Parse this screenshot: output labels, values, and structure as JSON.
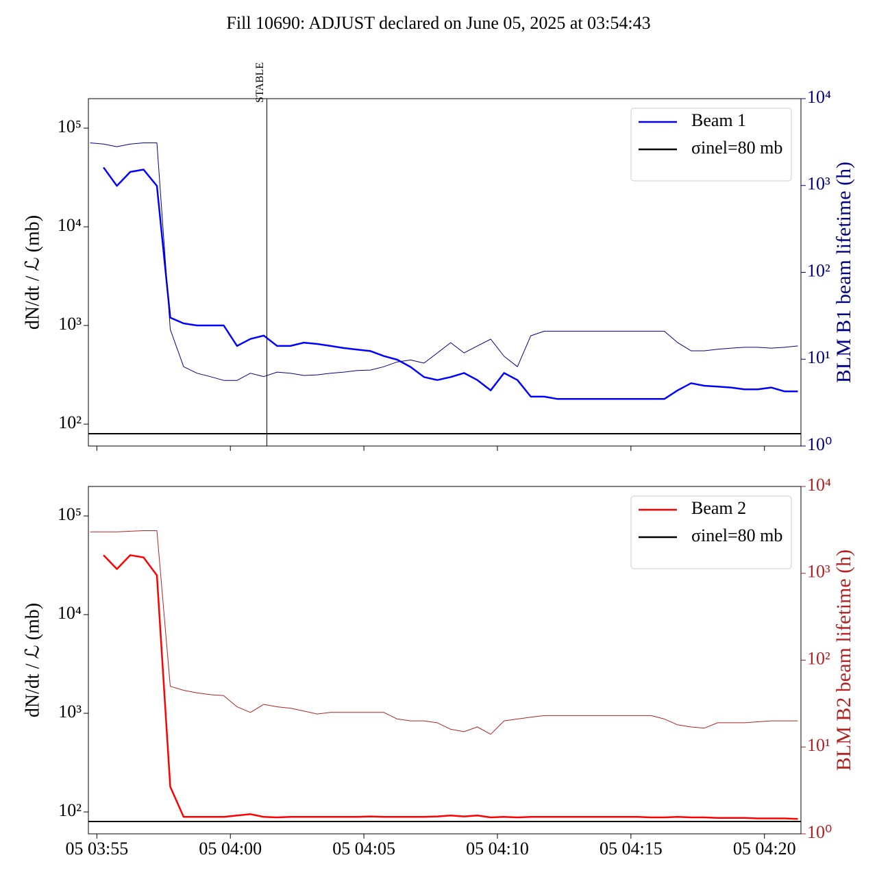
{
  "chart_data": [
    {
      "type": "line",
      "title": "Fill 10690: ADJUST declared on June 05, 2025 at 03:54:43",
      "x": [
        "05 03:54:45",
        "05 03:55:15",
        "05 03:55:45",
        "05 03:56:15",
        "05 03:56:45",
        "05 03:57:15",
        "05 03:57:45",
        "05 03:58:15",
        "05 03:58:45",
        "05 03:59:15",
        "05 03:59:45",
        "05 04:00:15",
        "05 04:00:45",
        "05 04:01:15",
        "05 04:01:45",
        "05 04:02:15",
        "05 04:02:45",
        "05 04:03:15",
        "05 04:03:45",
        "05 04:04:15",
        "05 04:04:45",
        "05 04:05:15",
        "05 04:05:45",
        "05 04:06:15",
        "05 04:06:45",
        "05 04:07:15",
        "05 04:07:45",
        "05 04:08:15",
        "05 04:08:45",
        "05 04:09:15",
        "05 04:09:45",
        "05 04:10:15",
        "05 04:10:45",
        "05 04:11:15",
        "05 04:11:45",
        "05 04:12:15",
        "05 04:12:45",
        "05 04:13:15",
        "05 04:13:45",
        "05 04:14:15",
        "05 04:14:45",
        "05 04:15:15",
        "05 04:15:45",
        "05 04:16:15",
        "05 04:16:45",
        "05 04:17:15",
        "05 04:17:45",
        "05 04:18:15",
        "05 04:18:45",
        "05 04:19:15",
        "05 04:19:45",
        "05 04:20:15",
        "05 04:20:45",
        "05 04:21:15"
      ],
      "series": [
        {
          "name": "Beam 1",
          "color": "#0000ff",
          "values": [
            null,
            40000,
            26000,
            36000,
            38000,
            26000,
            1200,
            1050,
            1000,
            1000,
            1000,
            620,
            730,
            790,
            620,
            620,
            670,
            650,
            620,
            590,
            570,
            550,
            490,
            450,
            380,
            300,
            280,
            300,
            330,
            280,
            220,
            330,
            280,
            190,
            190,
            180,
            180,
            180,
            180,
            180,
            180,
            180,
            180,
            180,
            220,
            260,
            245,
            240,
            235,
            225,
            225,
            235,
            215,
            215
          ]
        },
        {
          "color": "#00008b",
          "axis": "y2",
          "values": [
            3100,
            3000,
            2800,
            3000,
            3100,
            3100,
            22,
            8.2,
            6.9,
            6.3,
            5.7,
            5.7,
            6.9,
            6.3,
            7.1,
            6.9,
            6.5,
            6.6,
            6.9,
            7.1,
            7.4,
            7.5,
            8.2,
            9.3,
            9.8,
            9.0,
            11.8,
            15.5,
            11.8,
            14.2,
            17,
            10.8,
            8.2,
            18.6,
            21,
            21,
            21,
            21,
            21,
            21,
            21,
            21,
            21,
            21,
            15.5,
            12.5,
            12.5,
            13,
            13.4,
            13.7,
            13.7,
            13.4,
            13.7,
            14.2
          ]
        }
      ],
      "hline": {
        "name": "σinel=80 mb",
        "value": 80,
        "color": "#000000"
      },
      "annotation": {
        "text": "STABLE",
        "x": "05 04:01:22"
      },
      "ylabel": "dN/dt / ℒ (mb)",
      "y2label": "BLM B1 beam lifetime (h)",
      "y2color": "#000080",
      "xlim": [
        "05 03:54:41",
        "05 04:21:22"
      ],
      "yscale": "log",
      "ylim": [
        60,
        199000
      ],
      "yticks": [
        {
          "value": 100,
          "label": "10²"
        },
        {
          "value": 1000,
          "label": "10³"
        },
        {
          "value": 10000,
          "label": "10⁴"
        },
        {
          "value": 100000,
          "label": "10⁵"
        }
      ],
      "y2scale": "log",
      "y2lim": [
        1,
        10000
      ],
      "y2ticks": [
        {
          "value": 1,
          "label": "10⁰"
        },
        {
          "value": 10,
          "label": "10¹"
        },
        {
          "value": 100,
          "label": "10²"
        },
        {
          "value": 1000,
          "label": "10³"
        },
        {
          "value": 10000,
          "label": "10⁴"
        }
      ],
      "legend": "upper right"
    },
    {
      "type": "line",
      "x": [
        "05 03:54:45",
        "05 03:55:15",
        "05 03:55:45",
        "05 03:56:15",
        "05 03:56:45",
        "05 03:57:15",
        "05 03:57:45",
        "05 03:58:15",
        "05 03:58:45",
        "05 03:59:15",
        "05 03:59:45",
        "05 04:00:15",
        "05 04:00:45",
        "05 04:01:15",
        "05 04:01:45",
        "05 04:02:15",
        "05 04:02:45",
        "05 04:03:15",
        "05 04:03:45",
        "05 04:04:15",
        "05 04:04:45",
        "05 04:05:15",
        "05 04:05:45",
        "05 04:06:15",
        "05 04:06:45",
        "05 04:07:15",
        "05 04:07:45",
        "05 04:08:15",
        "05 04:08:45",
        "05 04:09:15",
        "05 04:09:45",
        "05 04:10:15",
        "05 04:10:45",
        "05 04:11:15",
        "05 04:11:45",
        "05 04:12:15",
        "05 04:12:45",
        "05 04:13:15",
        "05 04:13:45",
        "05 04:14:15",
        "05 04:14:45",
        "05 04:15:15",
        "05 04:15:45",
        "05 04:16:15",
        "05 04:16:45",
        "05 04:17:15",
        "05 04:17:45",
        "05 04:18:15",
        "05 04:18:45",
        "05 04:19:15",
        "05 04:19:45",
        "05 04:20:15",
        "05 04:20:45",
        "05 04:21:15"
      ],
      "series": [
        {
          "name": "Beam 2",
          "color": "#ff0000",
          "values": [
            null,
            40000,
            29000,
            40000,
            38000,
            25000,
            180,
            89,
            89,
            89,
            89,
            92,
            95,
            89,
            88,
            89,
            89,
            89,
            89,
            89,
            89,
            90,
            89,
            89,
            89,
            89,
            90,
            92,
            90,
            92,
            88,
            89,
            88,
            89,
            89,
            89,
            89,
            89,
            89,
            89,
            89,
            89,
            88,
            88,
            89,
            88,
            88,
            87,
            87,
            87,
            86,
            86,
            86,
            85
          ]
        },
        {
          "color": "#b22222",
          "axis": "y2",
          "values": [
            3000,
            3000,
            3000,
            3050,
            3100,
            3100,
            50,
            45,
            42,
            40,
            39,
            29,
            25,
            31,
            29,
            28,
            26,
            24,
            25,
            25,
            25,
            25,
            25,
            21,
            20,
            20,
            19,
            16,
            15,
            17,
            14,
            20,
            21,
            22,
            23,
            23,
            23,
            23,
            23,
            23,
            23,
            23,
            23,
            21,
            18,
            17,
            16.5,
            19,
            19,
            19,
            19.5,
            20,
            20,
            20
          ]
        }
      ],
      "hline": {
        "name": "σinel=80 mb",
        "value": 80,
        "color": "#000000"
      },
      "ylabel": "dN/dt / ℒ (mb)",
      "y2label": "BLM B2 beam lifetime (h)",
      "y2color": "#b22222",
      "xlim": [
        "05 03:54:41",
        "05 04:21:22"
      ],
      "xticks": [
        "05 03:55",
        "05 04:00",
        "05 04:05",
        "05 04:10",
        "05 04:15",
        "05 04:20"
      ],
      "yscale": "log",
      "ylim": [
        60,
        199000
      ],
      "yticks": [
        {
          "value": 100,
          "label": "10²"
        },
        {
          "value": 1000,
          "label": "10³"
        },
        {
          "value": 10000,
          "label": "10⁴"
        },
        {
          "value": 100000,
          "label": "10⁵"
        }
      ],
      "y2scale": "log",
      "y2lim": [
        1,
        10000
      ],
      "y2ticks": [
        {
          "value": 1,
          "label": "10⁰"
        },
        {
          "value": 10,
          "label": "10¹"
        },
        {
          "value": 100,
          "label": "10²"
        },
        {
          "value": 1000,
          "label": "10³"
        },
        {
          "value": 10000,
          "label": "10⁴"
        }
      ],
      "legend": "upper right"
    }
  ]
}
